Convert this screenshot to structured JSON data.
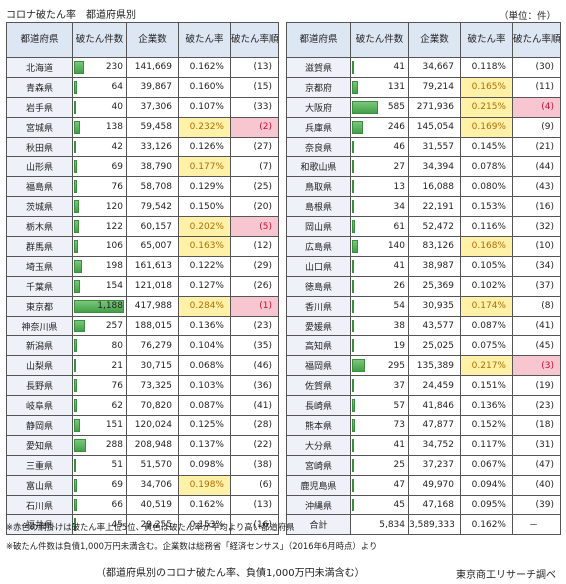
{
  "title": "コロナ破たん率　都道府県別",
  "unit": "（単位：件）",
  "headers": {
    "pref": "都道府県",
    "count": "破たん件数",
    "firms": "企業数",
    "rate": "破たん率",
    "rank": "破たん率順位"
  },
  "colors": {
    "yellow": "#fff2a8",
    "pink": "#f8c6d0",
    "bar": "#43a047"
  },
  "bar_max": 1188,
  "left_rows": [
    {
      "pref": "北海道",
      "count": "230",
      "firms": "141,669",
      "rate": "0.162%",
      "rank": "(13)",
      "hl": ""
    },
    {
      "pref": "青森県",
      "count": "64",
      "firms": "39,867",
      "rate": "0.160%",
      "rank": "(15)",
      "hl": ""
    },
    {
      "pref": "岩手県",
      "count": "40",
      "firms": "37,306",
      "rate": "0.107%",
      "rank": "(33)",
      "hl": ""
    },
    {
      "pref": "宮城県",
      "count": "138",
      "firms": "59,458",
      "rate": "0.232%",
      "rank": "(2)",
      "hl": "pink"
    },
    {
      "pref": "秋田県",
      "count": "42",
      "firms": "33,126",
      "rate": "0.126%",
      "rank": "(27)",
      "hl": ""
    },
    {
      "pref": "山形県",
      "count": "69",
      "firms": "38,790",
      "rate": "0.177%",
      "rank": "(7)",
      "hl": "yellow"
    },
    {
      "pref": "福島県",
      "count": "76",
      "firms": "58,708",
      "rate": "0.129%",
      "rank": "(25)",
      "hl": ""
    },
    {
      "pref": "茨城県",
      "count": "120",
      "firms": "79,542",
      "rate": "0.150%",
      "rank": "(20)",
      "hl": ""
    },
    {
      "pref": "栃木県",
      "count": "122",
      "firms": "60,157",
      "rate": "0.202%",
      "rank": "(5)",
      "hl": "pink"
    },
    {
      "pref": "群馬県",
      "count": "106",
      "firms": "65,007",
      "rate": "0.163%",
      "rank": "(12)",
      "hl": "yellow"
    },
    {
      "pref": "埼玉県",
      "count": "198",
      "firms": "161,613",
      "rate": "0.122%",
      "rank": "(29)",
      "hl": ""
    },
    {
      "pref": "千葉県",
      "count": "154",
      "firms": "121,018",
      "rate": "0.127%",
      "rank": "(26)",
      "hl": ""
    },
    {
      "pref": "東京都",
      "count": "1,188",
      "firms": "417,988",
      "rate": "0.284%",
      "rank": "(1)",
      "hl": "pink"
    },
    {
      "pref": "神奈川県",
      "count": "257",
      "firms": "188,015",
      "rate": "0.136%",
      "rank": "(23)",
      "hl": ""
    },
    {
      "pref": "新潟県",
      "count": "80",
      "firms": "76,279",
      "rate": "0.104%",
      "rank": "(35)",
      "hl": ""
    },
    {
      "pref": "山梨県",
      "count": "21",
      "firms": "30,715",
      "rate": "0.068%",
      "rank": "(46)",
      "hl": ""
    },
    {
      "pref": "長野県",
      "count": "76",
      "firms": "73,325",
      "rate": "0.103%",
      "rank": "(36)",
      "hl": ""
    },
    {
      "pref": "岐阜県",
      "count": "62",
      "firms": "70,820",
      "rate": "0.087%",
      "rank": "(41)",
      "hl": ""
    },
    {
      "pref": "静岡県",
      "count": "151",
      "firms": "120,024",
      "rate": "0.125%",
      "rank": "(28)",
      "hl": ""
    },
    {
      "pref": "愛知県",
      "count": "288",
      "firms": "208,948",
      "rate": "0.137%",
      "rank": "(22)",
      "hl": ""
    },
    {
      "pref": "三重県",
      "count": "51",
      "firms": "51,570",
      "rate": "0.098%",
      "rank": "(38)",
      "hl": ""
    },
    {
      "pref": "富山県",
      "count": "69",
      "firms": "34,706",
      "rate": "0.198%",
      "rank": "(6)",
      "hl": "yellow"
    },
    {
      "pref": "石川県",
      "count": "66",
      "firms": "40,519",
      "rate": "0.162%",
      "rank": "(13)",
      "hl": ""
    },
    {
      "pref": "福井県",
      "count": "45",
      "firms": "29,255",
      "rate": "0.153%",
      "rank": "(16)",
      "hl": ""
    }
  ],
  "right_rows": [
    {
      "pref": "滋賀県",
      "count": "41",
      "firms": "34,667",
      "rate": "0.118%",
      "rank": "(30)",
      "hl": ""
    },
    {
      "pref": "京都府",
      "count": "131",
      "firms": "79,214",
      "rate": "0.165%",
      "rank": "(11)",
      "hl": "yellow"
    },
    {
      "pref": "大阪府",
      "count": "585",
      "firms": "271,936",
      "rate": "0.215%",
      "rank": "(4)",
      "hl": "pink"
    },
    {
      "pref": "兵庫県",
      "count": "246",
      "firms": "145,054",
      "rate": "0.169%",
      "rank": "(9)",
      "hl": "yellow"
    },
    {
      "pref": "奈良県",
      "count": "46",
      "firms": "31,557",
      "rate": "0.145%",
      "rank": "(21)",
      "hl": ""
    },
    {
      "pref": "和歌山県",
      "count": "27",
      "firms": "34,394",
      "rate": "0.078%",
      "rank": "(44)",
      "hl": ""
    },
    {
      "pref": "鳥取県",
      "count": "13",
      "firms": "16,088",
      "rate": "0.080%",
      "rank": "(43)",
      "hl": ""
    },
    {
      "pref": "島根県",
      "count": "34",
      "firms": "22,191",
      "rate": "0.153%",
      "rank": "(16)",
      "hl": ""
    },
    {
      "pref": "岡山県",
      "count": "61",
      "firms": "52,472",
      "rate": "0.116%",
      "rank": "(32)",
      "hl": ""
    },
    {
      "pref": "広島県",
      "count": "140",
      "firms": "83,126",
      "rate": "0.168%",
      "rank": "(10)",
      "hl": "yellow"
    },
    {
      "pref": "山口県",
      "count": "41",
      "firms": "38,987",
      "rate": "0.105%",
      "rank": "(34)",
      "hl": ""
    },
    {
      "pref": "徳島県",
      "count": "26",
      "firms": "25,369",
      "rate": "0.102%",
      "rank": "(37)",
      "hl": ""
    },
    {
      "pref": "香川県",
      "count": "54",
      "firms": "30,935",
      "rate": "0.174%",
      "rank": "(8)",
      "hl": "yellow"
    },
    {
      "pref": "愛媛県",
      "count": "38",
      "firms": "43,577",
      "rate": "0.087%",
      "rank": "(41)",
      "hl": ""
    },
    {
      "pref": "高知県",
      "count": "19",
      "firms": "25,025",
      "rate": "0.075%",
      "rank": "(45)",
      "hl": ""
    },
    {
      "pref": "福岡県",
      "count": "295",
      "firms": "135,389",
      "rate": "0.217%",
      "rank": "(3)",
      "hl": "pink"
    },
    {
      "pref": "佐賀県",
      "count": "37",
      "firms": "24,459",
      "rate": "0.151%",
      "rank": "(19)",
      "hl": ""
    },
    {
      "pref": "長崎県",
      "count": "57",
      "firms": "41,846",
      "rate": "0.136%",
      "rank": "(23)",
      "hl": ""
    },
    {
      "pref": "熊本県",
      "count": "73",
      "firms": "47,877",
      "rate": "0.152%",
      "rank": "(18)",
      "hl": ""
    },
    {
      "pref": "大分県",
      "count": "41",
      "firms": "34,752",
      "rate": "0.117%",
      "rank": "(31)",
      "hl": ""
    },
    {
      "pref": "宮崎県",
      "count": "25",
      "firms": "37,237",
      "rate": "0.067%",
      "rank": "(47)",
      "hl": ""
    },
    {
      "pref": "鹿児島県",
      "count": "47",
      "firms": "49,970",
      "rate": "0.094%",
      "rank": "(40)",
      "hl": ""
    },
    {
      "pref": "沖縄県",
      "count": "45",
      "firms": "47,168",
      "rate": "0.095%",
      "rank": "(39)",
      "hl": ""
    },
    {
      "pref": "合計",
      "count": "5,834",
      "firms": "3,589,333",
      "rate": "0.162%",
      "rank": "－",
      "hl": "total"
    }
  ],
  "notes": [
    "※赤色の網掛けは破たん率上位5位、黄色は破たん率が平均より高い都道府県",
    "※破たん件数は負債1,000万円未満含む。企業数は総務省「経済センサス」（2016年6月時点）より"
  ],
  "caption": "（都道府県別のコロナ破たん率、負債1,000万円未満含む）",
  "source": "東京商工リサーチ調べ"
}
